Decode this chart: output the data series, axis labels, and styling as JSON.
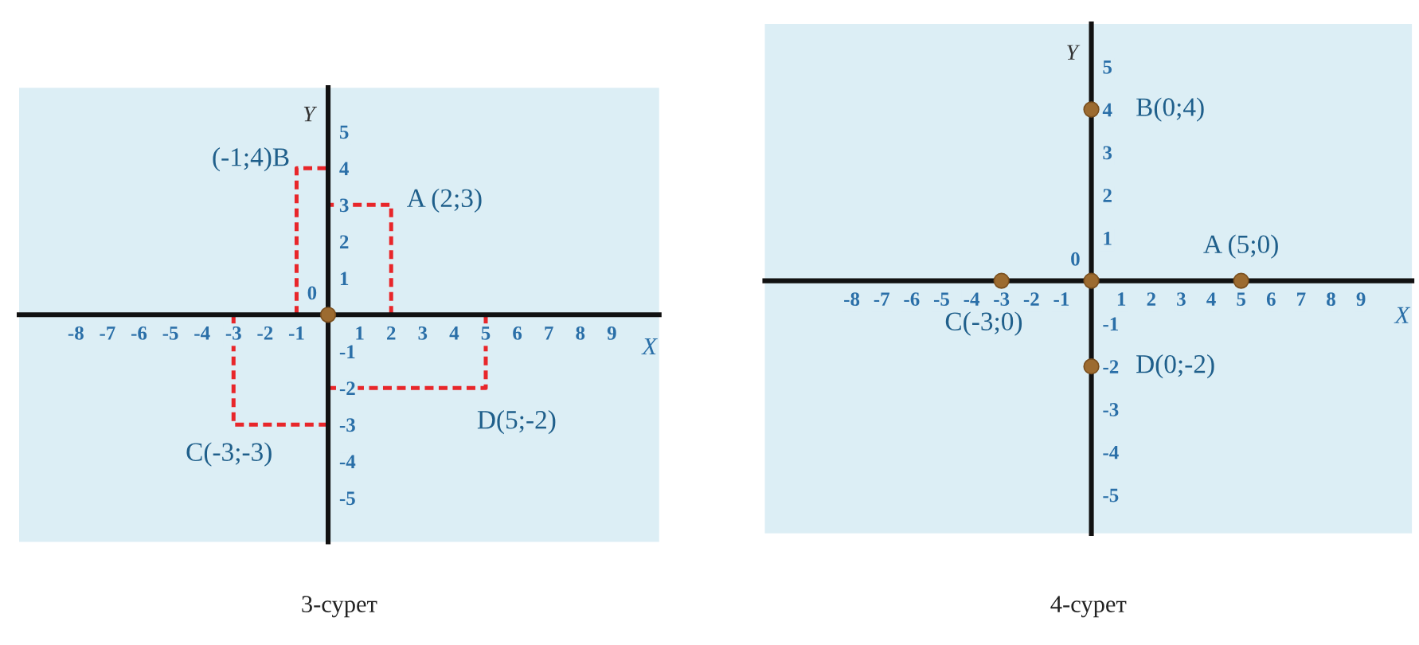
{
  "chart_data": [
    {
      "type": "scatter",
      "xlabel": "X",
      "ylabel": "Y",
      "xlim": [
        -9.8,
        10.5
      ],
      "ylim": [
        -6.2,
        6.2
      ],
      "xticks": [
        -8,
        -7,
        -6,
        -5,
        -4,
        -3,
        -2,
        -1,
        1,
        2,
        3,
        4,
        5,
        6,
        7,
        8,
        9
      ],
      "yticks": [
        -5,
        -4,
        -3,
        -2,
        -1,
        1,
        2,
        3,
        4,
        5
      ],
      "series": [
        {
          "type": "line",
          "color": "#e8262a",
          "line_style": "dashed",
          "x": [
            2,
            2,
            0
          ],
          "values": [
            0,
            3,
            3
          ]
        },
        {
          "type": "line",
          "color": "#e8262a",
          "line_style": "dashed",
          "x": [
            -1,
            -1,
            0
          ],
          "values": [
            0,
            4,
            4
          ]
        },
        {
          "type": "line",
          "color": "#e8262a",
          "line_style": "dashed",
          "x": [
            -3,
            -3,
            0
          ],
          "values": [
            0,
            -3,
            -3
          ]
        },
        {
          "type": "line",
          "color": "#e8262a",
          "line_style": "dashed",
          "x": [
            5,
            5,
            0
          ],
          "values": [
            0,
            -2,
            -2
          ]
        },
        {
          "color": "#9c6b30",
          "marker": "circle",
          "x": [
            0
          ],
          "values": [
            0
          ]
        }
      ],
      "annotations": [
        {
          "text": "0",
          "x": 0,
          "y": 0
        },
        {
          "text": "A (2;3)",
          "x": 2,
          "y": 3
        },
        {
          "text": "(-1;4)B",
          "x": -1,
          "y": 4
        },
        {
          "text": "C(-3;-3)",
          "x": -3,
          "y": -3
        },
        {
          "text": "D(5;-2)",
          "x": 5,
          "y": -2
        },
        "3-сурет"
      ]
    },
    {
      "type": "scatter",
      "xlabel": "X",
      "ylabel": "Y",
      "xlim": [
        -10.9,
        10.7
      ],
      "ylim": [
        -5.9,
        6.0
      ],
      "xticks": [
        -8,
        -7,
        -6,
        -5,
        -4,
        -3,
        -2,
        -1,
        1,
        2,
        3,
        4,
        5,
        6,
        7,
        8,
        9
      ],
      "yticks": [
        -5,
        -4,
        -3,
        -2,
        -1,
        1,
        2,
        3,
        4,
        5
      ],
      "series": [
        {
          "color": "#9c6b30",
          "marker": "circle",
          "x": [
            5,
            0,
            -3,
            0,
            0
          ],
          "values": [
            0,
            4,
            0,
            -2,
            0
          ]
        }
      ],
      "annotations": [
        {
          "text": "0",
          "x": 0,
          "y": 0
        },
        {
          "text": "A (5;0)",
          "x": 5,
          "y": 0
        },
        {
          "text": "B(0;4)",
          "x": 0,
          "y": 4
        },
        {
          "text": "C(-3;0)",
          "x": -3,
          "y": 0
        },
        {
          "text": "D(0;-2)",
          "x": 0,
          "y": -2
        },
        "4-сурет"
      ]
    }
  ]
}
